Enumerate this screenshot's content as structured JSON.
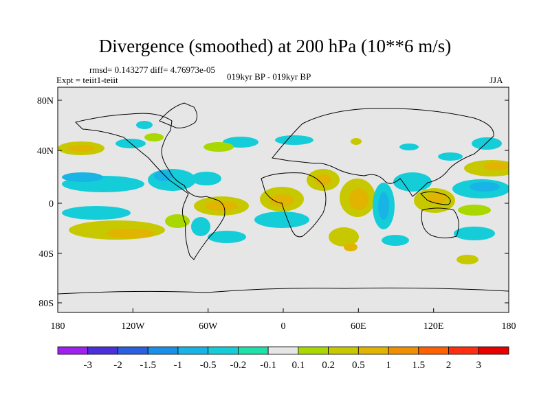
{
  "header": {
    "title": "Divergence (smoothed) at 200 hPa (10**6 m/s)",
    "stats": "rmsd= 0.143277 diff= 4.76973e-05",
    "experiment": "Expt = teiit1-teiit",
    "period": "019kyr BP - 019kyr BP",
    "season": "JJA"
  },
  "axes": {
    "lat_labels": [
      "80N",
      "40N",
      "0",
      "40S",
      "80S"
    ],
    "lon_labels": [
      "180",
      "120W",
      "60W",
      "0",
      "60E",
      "120E",
      "180"
    ]
  },
  "colorbar": {
    "labels": [
      "-3",
      "-2",
      "-1.5",
      "-1",
      "-0.5",
      "-0.2",
      "-0.1",
      "0.1",
      "0.2",
      "0.5",
      "1",
      "1.5",
      "2",
      "3"
    ],
    "colors": [
      "#a020f0",
      "#4b2fd8",
      "#2a5fe0",
      "#1a8fe8",
      "#18b4e6",
      "#14cdd8",
      "#1ee0a8",
      "#e6e6e6",
      "#a8d800",
      "#c8c800",
      "#e0b400",
      "#f09000",
      "#ff6000",
      "#ff2e10",
      "#e80000"
    ]
  },
  "colors": {
    "ocean": "#e6e6e6",
    "positive_weak": "#a8d800",
    "positive_mid": "#c8c800",
    "negative_weak": "#14cdd8",
    "negative_mid": "#18b4e6"
  }
}
